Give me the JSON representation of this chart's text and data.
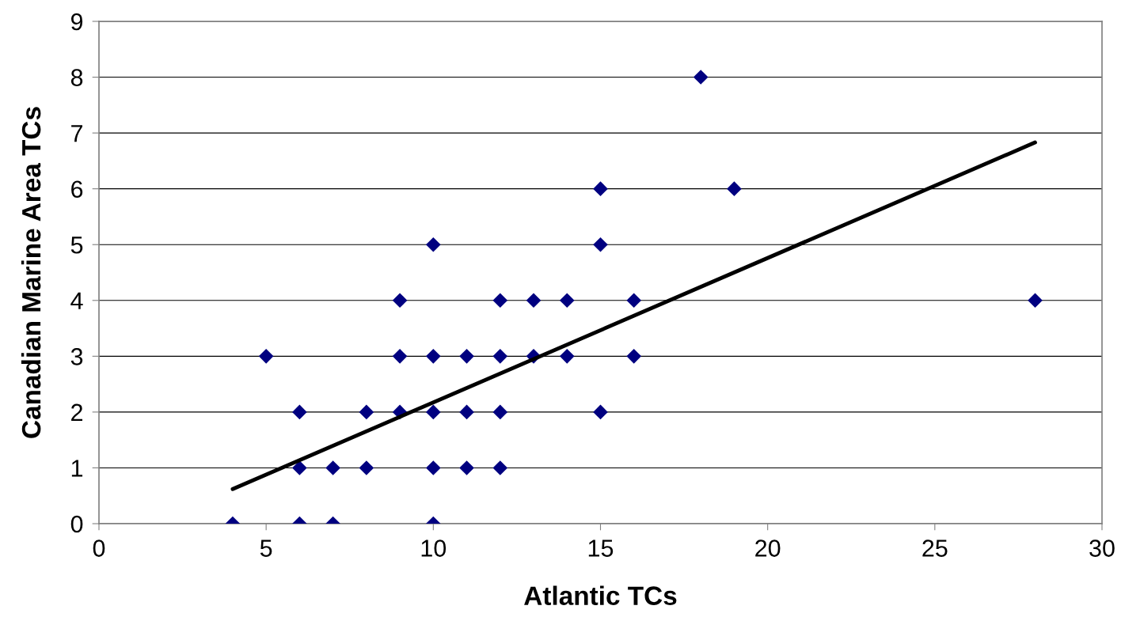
{
  "chart_data": {
    "type": "scatter",
    "xlabel": "Atlantic TCs",
    "ylabel": "Canadian Marine Area TCs",
    "xlim": [
      0,
      30
    ],
    "xticks": [
      0,
      5,
      10,
      15,
      20,
      25,
      30
    ],
    "ylim": [
      0,
      9
    ],
    "yticks": [
      0,
      1,
      2,
      3,
      4,
      5,
      6,
      7,
      8,
      9
    ],
    "grid": "y",
    "legend": false,
    "marker": "diamond",
    "series": [
      {
        "color": "#000080",
        "x": [
          4,
          6,
          7,
          10,
          6,
          7,
          8,
          10,
          11,
          12,
          6,
          8,
          9,
          10,
          11,
          12,
          15,
          5,
          9,
          10,
          11,
          12,
          13,
          14,
          16,
          9,
          12,
          13,
          14,
          16,
          28,
          10,
          15,
          15,
          19,
          18
        ],
        "values": [
          0,
          0,
          0,
          0,
          1,
          1,
          1,
          1,
          1,
          1,
          2,
          2,
          2,
          2,
          2,
          2,
          2,
          3,
          3,
          3,
          3,
          3,
          3,
          3,
          3,
          4,
          4,
          4,
          4,
          4,
          4,
          5,
          5,
          6,
          6,
          8
        ]
      },
      {
        "type": "line",
        "color": "#000000",
        "marker": "none",
        "line_style": "solid",
        "x": [
          4,
          28
        ],
        "values": [
          0.62,
          6.83
        ]
      }
    ]
  }
}
